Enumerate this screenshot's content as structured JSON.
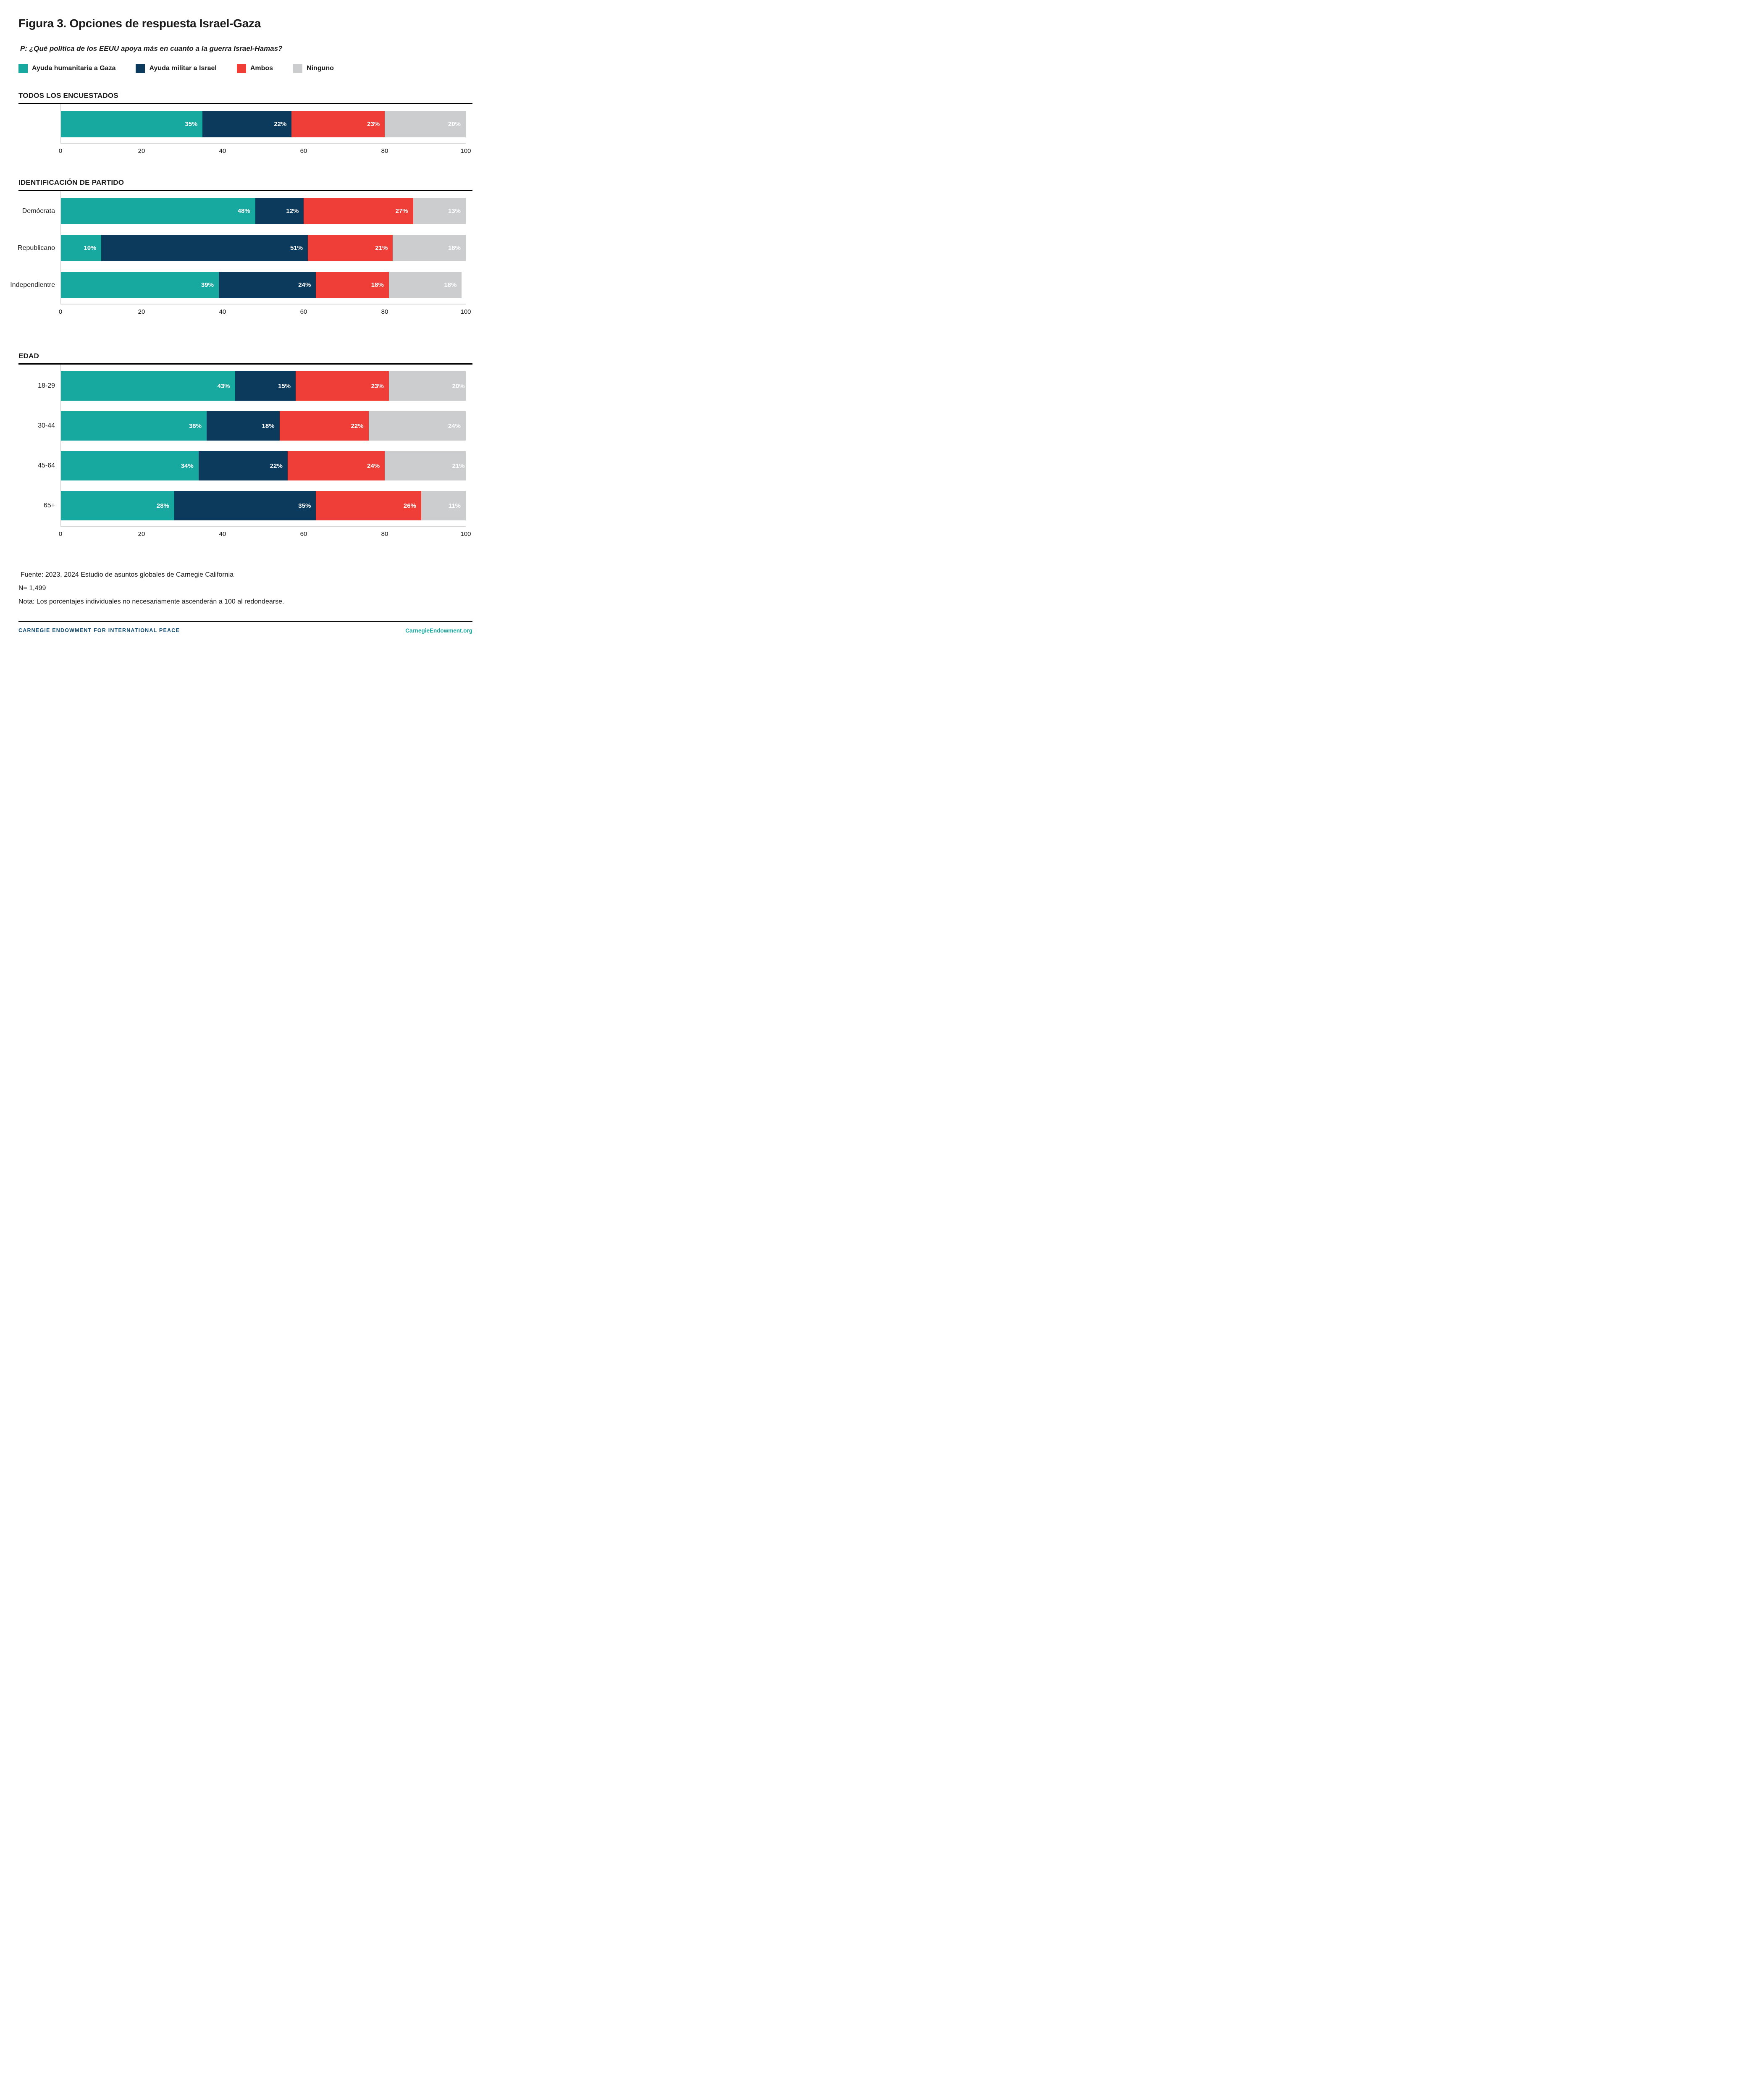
{
  "header": {
    "title": "Figura 3. Opciones de respuesta Israel-Gaza",
    "question": "P: ¿Qué política de los EEUU apoya más en cuanto a la guerra Israel-Hamas?"
  },
  "colors": {
    "teal": "#17A89F",
    "navy": "#0B3A5D",
    "red": "#EE3E37",
    "gray": "#CBCDCF",
    "brand_navy": "#134A6B",
    "brand_teal": "#17A89F"
  },
  "legend": [
    {
      "key": "ayuda-humanitaria-a-gaza",
      "label": "Ayuda humanitaria a Gaza",
      "color": "#17A89F"
    },
    {
      "key": "ayuda-militar-a-israel",
      "label": "Ayuda militar a Israel",
      "color": "#0B3A5D"
    },
    {
      "key": "ambos",
      "label": "Ambos",
      "color": "#EE3E37"
    },
    {
      "key": "ninguno",
      "label": "Ninguno",
      "color": "#CBCDCF"
    }
  ],
  "chart_data": [
    {
      "type": "bar",
      "orientation": "horizontal",
      "stacked": true,
      "title": "TODOS LOS ENCUESTADOS",
      "categories": [
        ""
      ],
      "series": [
        {
          "name": "Ayuda humanitaria a Gaza",
          "values": [
            35
          ]
        },
        {
          "name": "Ayuda militar a Israel",
          "values": [
            22
          ]
        },
        {
          "name": "Ambos",
          "values": [
            23
          ]
        },
        {
          "name": "Ninguno",
          "values": [
            20
          ]
        }
      ],
      "value_suffix": "%",
      "xlim": [
        0,
        100
      ],
      "xticks": [
        0,
        20,
        40,
        60,
        80,
        100
      ],
      "grid": false,
      "legend_position": "top"
    },
    {
      "type": "bar",
      "orientation": "horizontal",
      "stacked": true,
      "title": "IDENTIFICACIÓN DE PARTIDO",
      "categories": [
        "Demócrata",
        "Republicano",
        "Independientre"
      ],
      "series": [
        {
          "name": "Ayuda humanitaria a Gaza",
          "values": [
            48,
            10,
            39
          ]
        },
        {
          "name": "Ayuda militar a Israel",
          "values": [
            12,
            51,
            24
          ]
        },
        {
          "name": "Ambos",
          "values": [
            27,
            21,
            18
          ]
        },
        {
          "name": "Ninguno",
          "values": [
            13,
            18,
            18
          ]
        }
      ],
      "value_suffix": "%",
      "xlim": [
        0,
        100
      ],
      "xticks": [
        0,
        20,
        40,
        60,
        80,
        100
      ],
      "grid": false,
      "legend_position": "top"
    },
    {
      "type": "bar",
      "orientation": "horizontal",
      "stacked": true,
      "title": "EDAD",
      "categories": [
        "18-29",
        "30-44",
        "45-64",
        "65+"
      ],
      "series": [
        {
          "name": "Ayuda humanitaria a Gaza",
          "values": [
            43,
            36,
            34,
            28
          ]
        },
        {
          "name": "Ayuda militar a Israel",
          "values": [
            15,
            18,
            22,
            35
          ]
        },
        {
          "name": "Ambos",
          "values": [
            23,
            22,
            24,
            26
          ]
        },
        {
          "name": "Ninguno",
          "values": [
            20,
            24,
            21,
            11
          ]
        }
      ],
      "value_suffix": "%",
      "xlim": [
        0,
        100
      ],
      "xticks": [
        0,
        20,
        40,
        60,
        80,
        100
      ],
      "grid": false,
      "legend_position": "top"
    }
  ],
  "footer": {
    "source": "Fuente: 2023, 2024 Estudio de asuntos globales de Carnegie California",
    "n": "N= 1,499",
    "note": "Nota: Los porcentajes individuales no necesariamente ascenderán a 100 al redondearse."
  },
  "footer_bar": {
    "left": "CARNEGIE ENDOWMENT FOR INTERNATIONAL PEACE",
    "right": "CarnegieEndowment.org"
  }
}
